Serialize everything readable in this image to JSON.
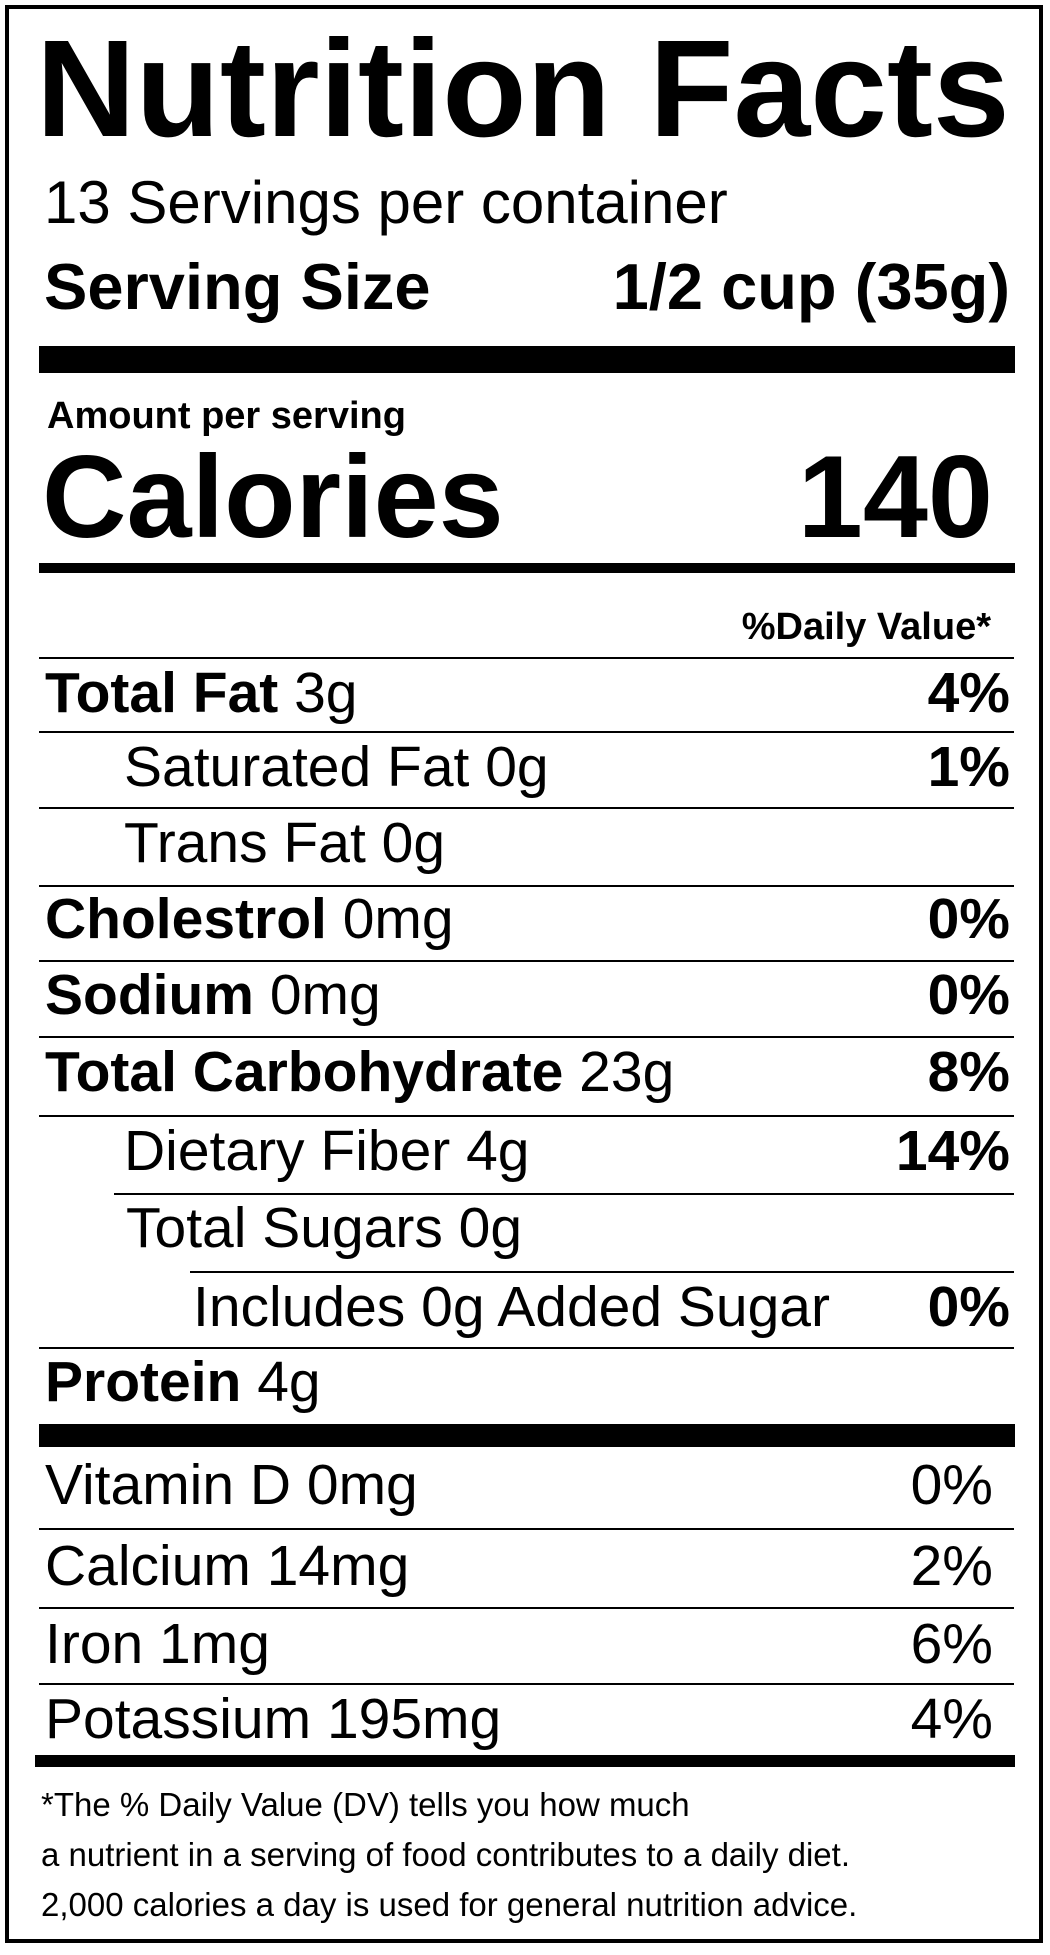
{
  "label": {
    "title": "Nutrition Facts",
    "servings_per_container": "13 Servings per container",
    "serving_size_label": "Serving Size",
    "serving_size_value": "1/2 cup (35g)",
    "amount_per_serving": "Amount per serving",
    "calories_label": "Calories",
    "calories_value": "140",
    "daily_value_header": "%Daily Value*",
    "nutrients": [
      {
        "name": "Total Fat",
        "amount": " 3g",
        "dv": "4%",
        "bold": true
      },
      {
        "name": "Saturated Fat 0g",
        "amount": "",
        "dv": "1%",
        "bold": false
      },
      {
        "name": "Trans Fat  0g",
        "amount": "",
        "dv": "",
        "bold": false
      },
      {
        "name": "Cholestrol",
        "amount": " 0mg",
        "dv": "0%",
        "bold": true
      },
      {
        "name": "Sodium",
        "amount": " 0mg",
        "dv": "0%",
        "bold": true
      },
      {
        "name": "Total Carbohydrate",
        "amount": " 23g",
        "dv": "8%",
        "bold": true
      },
      {
        "name": "Dietary Fiber 4g",
        "amount": "",
        "dv": "14%",
        "bold": false
      },
      {
        "name": "Total Sugars 0g",
        "amount": "",
        "dv": "",
        "bold": false
      },
      {
        "name": "Includes 0g Added Sugar",
        "amount": "",
        "dv": "0%",
        "bold": false
      },
      {
        "name": "Protein",
        "amount": " 4g",
        "dv": "",
        "bold": true
      }
    ],
    "vitamins": [
      {
        "name": "Vitamin D 0mg",
        "dv": "0%"
      },
      {
        "name": "Calcium 14mg",
        "dv": "2%"
      },
      {
        "name": "Iron 1mg",
        "dv": "6%"
      },
      {
        "name": "Potassium 195mg",
        "dv": "4%"
      }
    ],
    "footnote": [
      "*The % Daily Value (DV) tells you how much",
      "a nutrient in a serving of food contributes to a daily diet.",
      "2,000 calories a day is used for general nutrition advice."
    ]
  }
}
